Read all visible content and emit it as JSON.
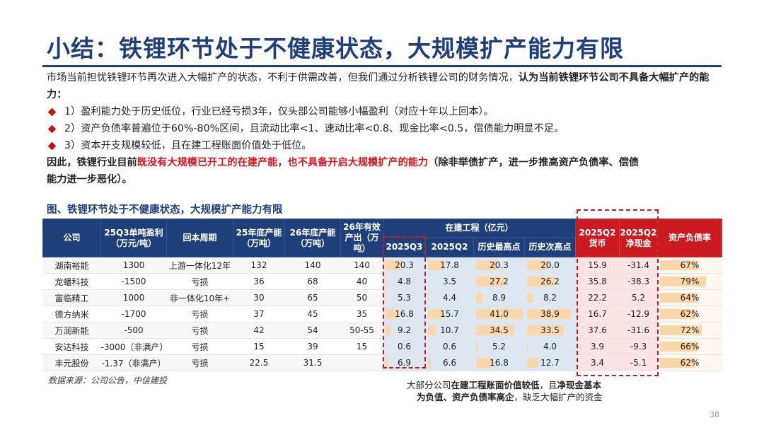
{
  "title": "小结：铁锂环节处于不健康状态，大规模扩产能力有限",
  "intro": {
    "normal": "市场当前担忧铁锂环节再次进入大幅扩产的状态，不利于供需改善，但我们通过分析铁锂公司的财务情况，",
    "bold": "认为当前铁锂环节公司不具备大幅扩产的能力："
  },
  "bullets": [
    "1）盈利能力处于历史低位，行业已经亏损3年，仅头部公司能够小幅盈利（对应十年以上回本）。",
    "2）资产负债率普遍位于60%-80%区间，且流动比率<1、速动比率<0.8、现金比率<0.5，偿债能力明显不足。",
    "3）资本开支规模较低，且在建工程账面价值处于低位。"
  ],
  "conclusion": {
    "part1": "因此，铁锂行业目前",
    "part2": "既没有大规模已开工的在建产能，也不具备开启大规模扩产的能力",
    "part3": "（除非举债扩产，进一步推高资产负债率、偿债",
    "part4": "能力进一步恶化）。"
  },
  "figure_title": "图、铁锂环节处于不健康状态，大规模扩产能力有限",
  "table": {
    "headers": {
      "company": "公司",
      "profit_l1": "25Q3单吨盈利",
      "profit_l2": "（万元/吨）",
      "payback": "回本周期",
      "cap25_l1": "25年底产能",
      "cap25_l2": "（万吨）",
      "cap26_l1": "26年底产能",
      "cap26_l2": "（万吨）",
      "output_l1": "26年有效",
      "output_l2": "产出（万",
      "output_l3": "吨）",
      "cip_group": "在建工程（亿元）",
      "cip_q3": "2025Q3",
      "cip_q2": "2025Q2",
      "cip_high": "历史最高点",
      "cip_second": "历史次高点",
      "cash_l1": "2025Q2",
      "cash_l2": "货币",
      "net_l1": "2025Q2",
      "net_l2": "净现金",
      "ratio": "资产负债率"
    },
    "rows": [
      {
        "company": "湖南裕能",
        "profit": "1300",
        "payback": "上游一体化12年",
        "cap25": "132",
        "cap26": "140",
        "output": "140",
        "cip_q3": "20.3",
        "cip_q2": "17.8",
        "cip_high": "20.3",
        "cip_second": "20.0",
        "cash": "15.9",
        "net": "-31.4",
        "ratio": "67%",
        "ratio_value": 67
      },
      {
        "company": "龙蟠科技",
        "profit": "-1500",
        "payback": "亏损",
        "cap25": "36",
        "cap26": "68",
        "output": "40",
        "cip_q3": "4.8",
        "cip_q2": "3.5",
        "cip_high": "27.2",
        "cip_second": "26.2",
        "cash": "35.8",
        "net": "-38.3",
        "ratio": "79%",
        "ratio_value": 79
      },
      {
        "company": "富临精工",
        "profit": "1000",
        "payback": "非一体化10年+",
        "cap25": "30",
        "cap26": "65",
        "output": "50",
        "cip_q3": "5.3",
        "cip_q2": "4.4",
        "cip_high": "8.9",
        "cip_second": "8.2",
        "cash": "22.2",
        "net": "5.2",
        "ratio": "64%",
        "ratio_value": 64
      },
      {
        "company": "德方纳米",
        "profit": "-1700",
        "payback": "亏损",
        "cap25": "37",
        "cap26": "45",
        "output": "35",
        "cip_q3": "16.8",
        "cip_q2": "15.7",
        "cip_high": "41.0",
        "cip_second": "38.9",
        "cash": "16.7",
        "net": "-12.9",
        "ratio": "62%",
        "ratio_value": 62
      },
      {
        "company": "万润新能",
        "profit": "-500",
        "payback": "亏损",
        "cap25": "42",
        "cap26": "54",
        "output": "50-55",
        "cip_q3": "9.2",
        "cip_q2": "10.7",
        "cip_high": "34.5",
        "cip_second": "33.5",
        "cash": "37.6",
        "net": "-31.6",
        "ratio": "72%",
        "ratio_value": 72
      },
      {
        "company": "安达科技",
        "profit": "-3000（非满产）",
        "payback": "亏损",
        "cap25": "15",
        "cap26": "39",
        "output": "15",
        "cip_q3": "0.6",
        "cip_q2": "0.6",
        "cip_high": "5.2",
        "cip_second": "4.0",
        "cash": "3.9",
        "net": "-9.3",
        "ratio": "66%",
        "ratio_value": 66
      },
      {
        "company": "丰元股份",
        "profit": "-1.37（非满产）",
        "payback": "亏损",
        "cap25": "22.5",
        "cap26": "31.5",
        "output": "",
        "cip_q3": "6.9",
        "cip_q2": "6.6",
        "cip_high": "16.8",
        "cip_second": "12.7",
        "cash": "3.4",
        "net": "-5.1",
        "ratio": "62%",
        "ratio_value": 62
      }
    ]
  },
  "source": "数据来源：公司公告，中信建投",
  "note": {
    "a": "大部分公司",
    "b": "在建工程账面价值较低",
    "c": "，且",
    "d": "净现金基本",
    "e": "为负值、资产负债率高企",
    "f": "，缺乏大幅扩产的资金"
  },
  "page_number": "38",
  "colors": {
    "title": "#1f3f7a",
    "header_blue": "#1f3f7a",
    "header_red": "#cc1b20",
    "highlight_red": "#e0121b",
    "bar_fill": "#f9d7ab"
  }
}
